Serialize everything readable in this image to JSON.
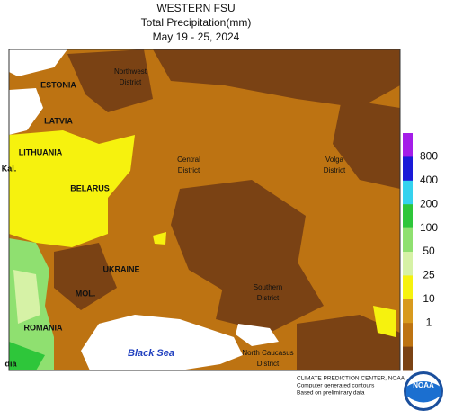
{
  "header": {
    "title": "WESTERN FSU",
    "subtitle": "Total Precipitation(mm)",
    "dates": "May 19 - 25, 2024"
  },
  "map": {
    "labels": [
      {
        "text": "ESTONIA",
        "kind": "country"
      },
      {
        "text": "LATVIA",
        "kind": "country"
      },
      {
        "text": "LITHUANIA",
        "kind": "country"
      },
      {
        "text": "BELARUS",
        "kind": "country"
      },
      {
        "text": "UKRAINE",
        "kind": "country"
      },
      {
        "text": "MOL.",
        "kind": "country"
      },
      {
        "text": "ROMANIA",
        "kind": "country"
      },
      {
        "text": "Kal.",
        "kind": "country"
      },
      {
        "text": "dia",
        "kind": "country"
      },
      {
        "text": "Northwest",
        "kind": "district"
      },
      {
        "text": "District",
        "kind": "district"
      },
      {
        "text": "Central",
        "kind": "district"
      },
      {
        "text": "District",
        "kind": "district"
      },
      {
        "text": "Volga",
        "kind": "district"
      },
      {
        "text": "District",
        "kind": "district"
      },
      {
        "text": "Southern",
        "kind": "district"
      },
      {
        "text": "District",
        "kind": "district"
      },
      {
        "text": "North Caucasus",
        "kind": "district"
      },
      {
        "text": "District",
        "kind": "district"
      },
      {
        "text": "Black Sea",
        "kind": "sea"
      }
    ]
  },
  "legend": {
    "colors": [
      "#a41ee8",
      "#1a1ad8",
      "#35d2ee",
      "#2ec63a",
      "#8fe070",
      "#d6f2a6",
      "#f6f20e",
      "#d89a1e",
      "#bd7312",
      "#7a4214"
    ],
    "labels": [
      "800",
      "400",
      "200",
      "100",
      "50",
      "25",
      "10",
      "1"
    ]
  },
  "footer": {
    "lines": [
      "CLIMATE PREDICTION CENTER, NOAA",
      "Computer generated contours",
      "Based on preliminary data"
    ],
    "logo": "NOAA"
  }
}
